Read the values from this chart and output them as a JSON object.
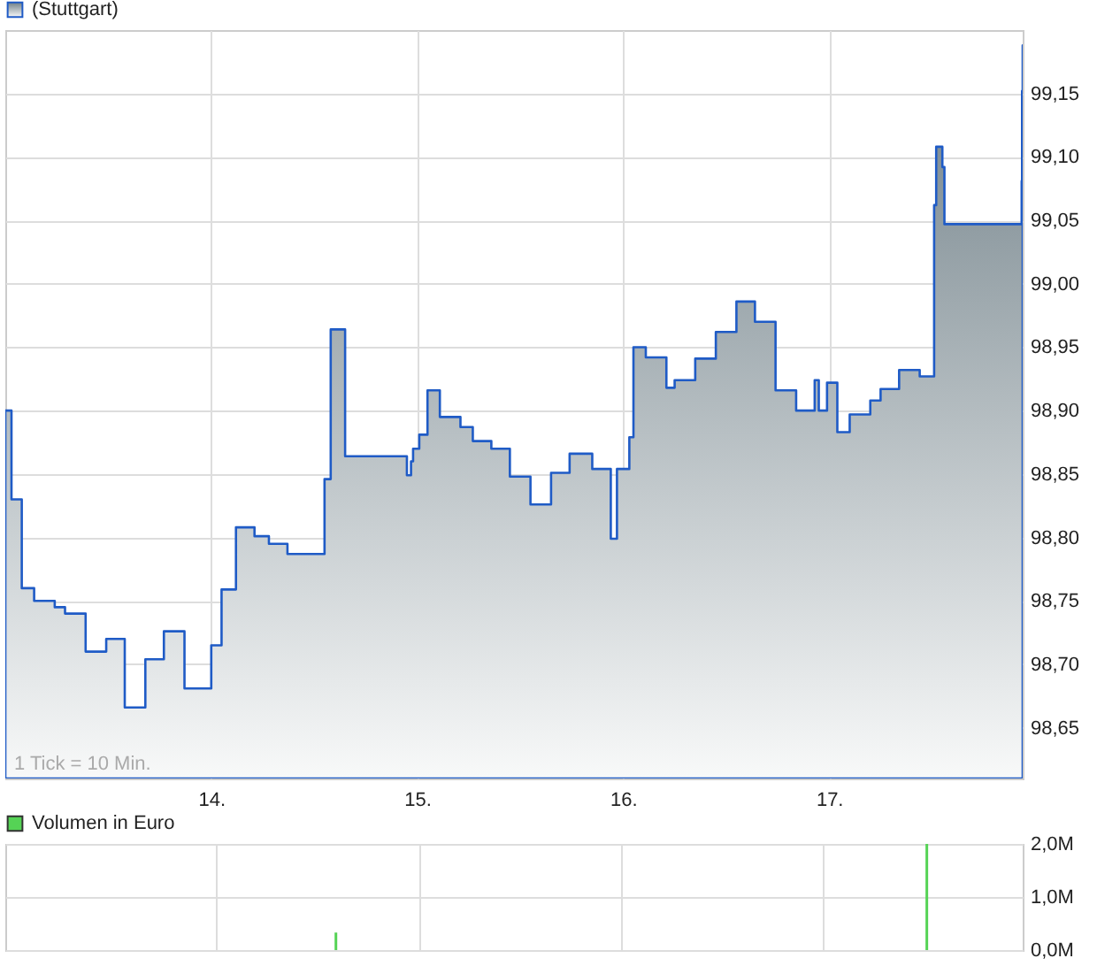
{
  "chart_data": [
    {
      "type": "area",
      "legend": "top left",
      "grid": true,
      "ylim": [
        98.61,
        99.2
      ],
      "xlim": [
        13,
        17.94
      ],
      "xticks": [
        {
          "value": 14,
          "label": "14."
        },
        {
          "value": 15,
          "label": "15."
        },
        {
          "value": 16,
          "label": "16."
        },
        {
          "value": 17,
          "label": "17."
        }
      ],
      "yticks": [
        {
          "value": 98.65,
          "label": "98,65"
        },
        {
          "value": 98.7,
          "label": "98,70"
        },
        {
          "value": 98.75,
          "label": "98,75"
        },
        {
          "value": 98.8,
          "label": "98,80"
        },
        {
          "value": 98.85,
          "label": "98,85"
        },
        {
          "value": 98.9,
          "label": "98,90"
        },
        {
          "value": 98.95,
          "label": "98,95"
        },
        {
          "value": 99.0,
          "label": "99,00"
        },
        {
          "value": 99.05,
          "label": "99,05"
        },
        {
          "value": 99.1,
          "label": "99,10"
        },
        {
          "value": 99.15,
          "label": "99,15"
        }
      ],
      "annotations": [
        "1 Tick = 10 Min."
      ],
      "x": [
        13.0,
        13.03,
        13.08,
        13.14,
        13.24,
        13.29,
        13.39,
        13.49,
        13.58,
        13.68,
        13.77,
        13.87,
        14.0,
        14.05,
        14.12,
        14.21,
        14.28,
        14.37,
        14.55,
        14.58,
        14.65,
        14.95,
        14.97,
        14.98,
        15.01,
        15.05,
        15.11,
        15.21,
        15.27,
        15.36,
        15.45,
        15.55,
        15.65,
        15.74,
        15.85,
        15.94,
        15.97,
        16.03,
        16.05,
        16.11,
        16.21,
        16.25,
        16.35,
        16.45,
        16.55,
        16.64,
        16.74,
        16.84,
        16.93,
        16.95,
        16.99,
        17.04,
        17.1,
        17.2,
        17.25,
        17.34,
        17.44,
        17.51,
        17.52,
        17.55,
        17.56,
        17.935,
        17.937,
        17.94
      ],
      "series": [
        {
          "name": "(Stuttgart)",
          "color": "#1f5bc6",
          "values": [
            98.9,
            98.83,
            98.76,
            98.75,
            98.745,
            98.74,
            98.71,
            98.72,
            98.666,
            98.704,
            98.726,
            98.681,
            98.715,
            98.759,
            98.808,
            98.801,
            98.795,
            98.787,
            98.846,
            98.964,
            98.864,
            98.849,
            98.86,
            98.87,
            98.881,
            98.916,
            98.895,
            98.887,
            98.876,
            98.87,
            98.848,
            98.826,
            98.851,
            98.866,
            98.854,
            98.799,
            98.854,
            98.879,
            98.95,
            98.942,
            98.918,
            98.924,
            98.941,
            98.962,
            98.986,
            98.97,
            98.916,
            98.9,
            98.924,
            98.9,
            98.922,
            98.883,
            98.897,
            98.908,
            98.917,
            98.932,
            98.927,
            99.062,
            99.108,
            99.092,
            99.047,
            99.081,
            99.152,
            99.188
          ]
        }
      ]
    },
    {
      "type": "bar",
      "legend": "top left",
      "grid": true,
      "tick_labels": "y",
      "ylim": [
        0,
        2
      ],
      "xlim": [
        13,
        17.94
      ],
      "xticks": [
        14,
        15,
        16,
        17
      ],
      "yticks": [
        {
          "value": 0,
          "label": "0,0M"
        },
        {
          "value": 1,
          "label": "1,0M"
        },
        {
          "value": 2,
          "label": "2,0M"
        }
      ],
      "x": [
        14.59,
        17.51
      ],
      "series": [
        {
          "name": "Volumen in Euro",
          "color": "#55d355",
          "values": [
            0.33,
            2.0
          ]
        }
      ]
    }
  ]
}
